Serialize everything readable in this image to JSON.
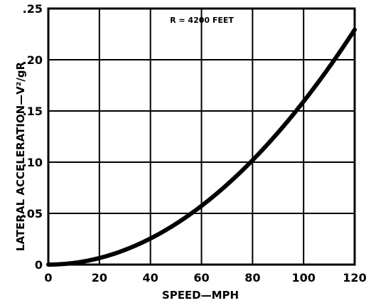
{
  "chart_data": {
    "type": "line",
    "title": "",
    "xlabel": "SPEED—MPH",
    "ylabel": "LATERAL ACCELERATION—V²/gR",
    "annotation": "R = 4200  FEET",
    "xlim": [
      0,
      120
    ],
    "ylim": [
      0,
      0.25
    ],
    "x_ticks": [
      0,
      20,
      40,
      60,
      80,
      100,
      120
    ],
    "x_tick_labels": [
      "0",
      "20",
      "40",
      "60",
      "80",
      "100",
      "120"
    ],
    "y_ticks": [
      0,
      0.05,
      0.1,
      0.15,
      0.2,
      0.25
    ],
    "y_tick_labels": [
      "0",
      ".05",
      ".10",
      ".15",
      ".20",
      ".25"
    ],
    "grid": true,
    "series": [
      {
        "x": [
          0,
          10,
          20,
          30,
          40,
          50,
          60,
          70,
          80,
          90,
          100,
          110,
          120
        ],
        "y": [
          0,
          0.0016,
          0.0064,
          0.0143,
          0.0255,
          0.0398,
          0.0573,
          0.078,
          0.1019,
          0.129,
          0.1592,
          0.1927,
          0.2293
        ]
      }
    ]
  }
}
